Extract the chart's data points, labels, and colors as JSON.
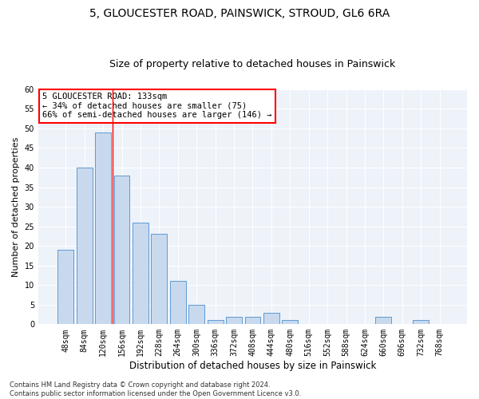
{
  "title1": "5, GLOUCESTER ROAD, PAINSWICK, STROUD, GL6 6RA",
  "title2": "Size of property relative to detached houses in Painswick",
  "xlabel": "Distribution of detached houses by size in Painswick",
  "ylabel": "Number of detached properties",
  "categories": [
    "48sqm",
    "84sqm",
    "120sqm",
    "156sqm",
    "192sqm",
    "228sqm",
    "264sqm",
    "300sqm",
    "336sqm",
    "372sqm",
    "408sqm",
    "444sqm",
    "480sqm",
    "516sqm",
    "552sqm",
    "588sqm",
    "624sqm",
    "660sqm",
    "696sqm",
    "732sqm",
    "768sqm"
  ],
  "values": [
    19,
    40,
    49,
    38,
    26,
    23,
    11,
    5,
    1,
    2,
    2,
    3,
    1,
    0,
    0,
    0,
    0,
    2,
    0,
    1,
    0
  ],
  "bar_color": "#c9d9ed",
  "bar_edge_color": "#5b9bd5",
  "red_line_index": 2.5,
  "annotation_line1": "5 GLOUCESTER ROAD: 133sqm",
  "annotation_line2": "← 34% of detached houses are smaller (75)",
  "annotation_line3": "66% of semi-detached houses are larger (146) →",
  "annotation_box_color": "white",
  "annotation_box_edge": "red",
  "ylim": [
    0,
    60
  ],
  "yticks": [
    0,
    5,
    10,
    15,
    20,
    25,
    30,
    35,
    40,
    45,
    50,
    55,
    60
  ],
  "footnote1": "Contains HM Land Registry data © Crown copyright and database right 2024.",
  "footnote2": "Contains public sector information licensed under the Open Government Licence v3.0.",
  "bg_color": "#eef2f9",
  "grid_color": "#ffffff",
  "title1_fontsize": 10,
  "title2_fontsize": 9,
  "tick_fontsize": 7,
  "ylabel_fontsize": 8,
  "xlabel_fontsize": 8.5,
  "footnote_fontsize": 6,
  "annot_fontsize": 7.5
}
